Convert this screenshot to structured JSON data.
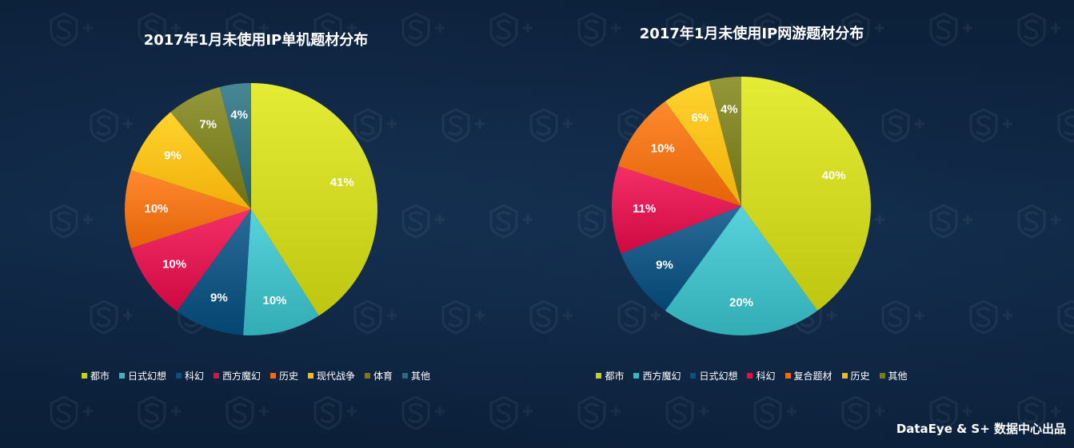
{
  "footer": {
    "credit": "DataEye & S+ 数据中心出品"
  },
  "chart_data": [
    {
      "type": "pie",
      "title": "2017年1月未使用IP单机题材分布",
      "start_angle_deg": 0,
      "slices": [
        {
          "label": "都市",
          "value": 41,
          "display": "41%",
          "color": "#c8d01a"
        },
        {
          "label": "日式幻想",
          "value": 10,
          "display": "10%",
          "color": "#3cb6bf"
        },
        {
          "label": "科幻",
          "value": 9,
          "display": "9%",
          "color": "#0e4f7c"
        },
        {
          "label": "西方魔幻",
          "value": 10,
          "display": "10%",
          "color": "#d8124a"
        },
        {
          "label": "历史",
          "value": 10,
          "display": "10%",
          "color": "#ee6d12"
        },
        {
          "label": "现代战争",
          "value": 9,
          "display": "9%",
          "color": "#fbb812"
        },
        {
          "label": "体育",
          "value": 7,
          "display": "7%",
          "color": "#787b1e"
        },
        {
          "label": "其他",
          "value": 4,
          "display": "4%",
          "color": "#2c6b7a"
        }
      ],
      "legend_placement": "bottom"
    },
    {
      "type": "pie",
      "title": "2017年1月未使用IP网游题材分布",
      "start_angle_deg": 0,
      "slices": [
        {
          "label": "都市",
          "value": 40,
          "display": "40%",
          "color": "#c8d01a"
        },
        {
          "label": "西方魔幻",
          "value": 20,
          "display": "20%",
          "color": "#3cb6bf"
        },
        {
          "label": "日式幻想",
          "value": 9,
          "display": "9%",
          "color": "#0e4f7c"
        },
        {
          "label": "科幻",
          "value": 11,
          "display": "11%",
          "color": "#d8124a"
        },
        {
          "label": "复合题材",
          "value": 10,
          "display": "10%",
          "color": "#ee6d12"
        },
        {
          "label": "历史",
          "value": 6,
          "display": "6%",
          "color": "#fbb812"
        },
        {
          "label": "其他",
          "value": 4,
          "display": "4%",
          "color": "#787b1e"
        }
      ],
      "legend_placement": "bottom"
    }
  ]
}
